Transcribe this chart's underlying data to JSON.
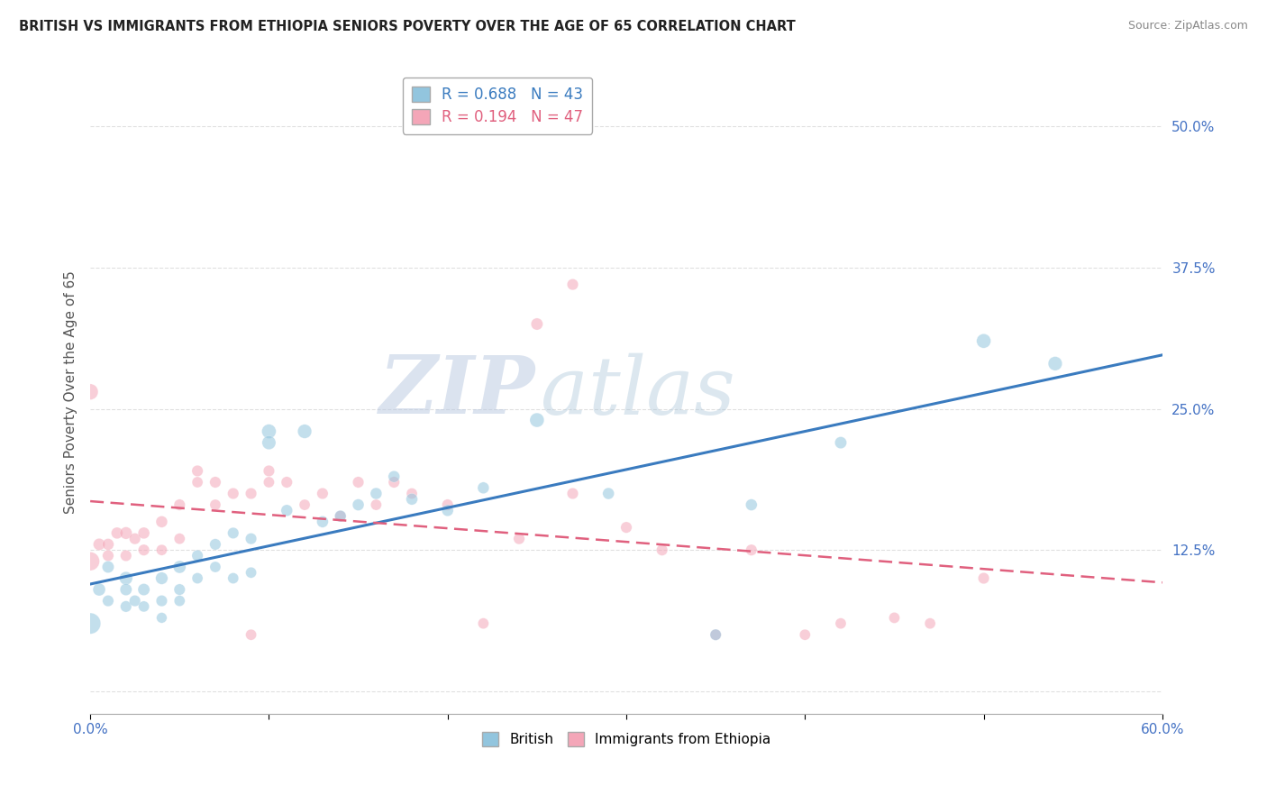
{
  "title": "BRITISH VS IMMIGRANTS FROM ETHIOPIA SENIORS POVERTY OVER THE AGE OF 65 CORRELATION CHART",
  "source": "Source: ZipAtlas.com",
  "ylabel": "Seniors Poverty Over the Age of 65",
  "xlim": [
    0.0,
    0.6
  ],
  "ylim": [
    -0.02,
    0.55
  ],
  "yticks": [
    0.0,
    0.125,
    0.25,
    0.375,
    0.5
  ],
  "ytick_labels": [
    "",
    "12.5%",
    "25.0%",
    "37.5%",
    "50.0%"
  ],
  "watermark_zip": "ZIP",
  "watermark_atlas": "atlas",
  "legend_r1": "R = 0.688",
  "legend_n1": "N = 43",
  "legend_r2": "R = 0.194",
  "legend_n2": "N = 47",
  "blue_color": "#92c5de",
  "pink_color": "#f4a6b8",
  "blue_line_color": "#3a7bbf",
  "pink_line_color": "#e0607e",
  "british_x": [
    0.0,
    0.005,
    0.01,
    0.01,
    0.02,
    0.02,
    0.02,
    0.025,
    0.03,
    0.03,
    0.04,
    0.04,
    0.04,
    0.05,
    0.05,
    0.05,
    0.06,
    0.06,
    0.07,
    0.07,
    0.08,
    0.08,
    0.09,
    0.09,
    0.1,
    0.1,
    0.11,
    0.12,
    0.13,
    0.14,
    0.15,
    0.16,
    0.17,
    0.18,
    0.2,
    0.22,
    0.25,
    0.29,
    0.35,
    0.37,
    0.42,
    0.5,
    0.54
  ],
  "british_y": [
    0.06,
    0.09,
    0.11,
    0.08,
    0.1,
    0.09,
    0.075,
    0.08,
    0.09,
    0.075,
    0.1,
    0.08,
    0.065,
    0.11,
    0.09,
    0.08,
    0.12,
    0.1,
    0.13,
    0.11,
    0.14,
    0.1,
    0.135,
    0.105,
    0.23,
    0.22,
    0.16,
    0.23,
    0.15,
    0.155,
    0.165,
    0.175,
    0.19,
    0.17,
    0.16,
    0.18,
    0.24,
    0.175,
    0.05,
    0.165,
    0.22,
    0.31,
    0.29
  ],
  "british_sizes": [
    280,
    100,
    90,
    80,
    110,
    90,
    80,
    80,
    90,
    75,
    95,
    80,
    70,
    100,
    80,
    75,
    80,
    75,
    80,
    75,
    80,
    75,
    80,
    75,
    130,
    120,
    85,
    125,
    85,
    85,
    85,
    85,
    85,
    85,
    85,
    85,
    130,
    85,
    80,
    85,
    90,
    130,
    125
  ],
  "ethiopia_x": [
    0.0,
    0.0,
    0.005,
    0.01,
    0.01,
    0.015,
    0.02,
    0.02,
    0.025,
    0.03,
    0.03,
    0.04,
    0.04,
    0.05,
    0.05,
    0.06,
    0.06,
    0.07,
    0.07,
    0.08,
    0.09,
    0.1,
    0.1,
    0.11,
    0.12,
    0.13,
    0.14,
    0.15,
    0.16,
    0.17,
    0.18,
    0.2,
    0.22,
    0.24,
    0.25,
    0.27,
    0.3,
    0.32,
    0.35,
    0.37,
    0.4,
    0.42,
    0.45,
    0.47,
    0.5,
    0.27,
    0.09
  ],
  "ethiopia_y": [
    0.115,
    0.265,
    0.13,
    0.13,
    0.12,
    0.14,
    0.14,
    0.12,
    0.135,
    0.14,
    0.125,
    0.15,
    0.125,
    0.165,
    0.135,
    0.195,
    0.185,
    0.185,
    0.165,
    0.175,
    0.175,
    0.195,
    0.185,
    0.185,
    0.165,
    0.175,
    0.155,
    0.185,
    0.165,
    0.185,
    0.175,
    0.165,
    0.06,
    0.135,
    0.325,
    0.175,
    0.145,
    0.125,
    0.05,
    0.125,
    0.05,
    0.06,
    0.065,
    0.06,
    0.1,
    0.36,
    0.05
  ],
  "ethiopia_sizes": [
    220,
    160,
    90,
    85,
    80,
    85,
    95,
    80,
    80,
    85,
    80,
    85,
    75,
    80,
    75,
    80,
    75,
    80,
    75,
    80,
    80,
    80,
    75,
    80,
    75,
    80,
    75,
    80,
    75,
    80,
    75,
    80,
    75,
    80,
    90,
    80,
    80,
    80,
    75,
    80,
    75,
    75,
    75,
    75,
    80,
    80,
    75
  ]
}
